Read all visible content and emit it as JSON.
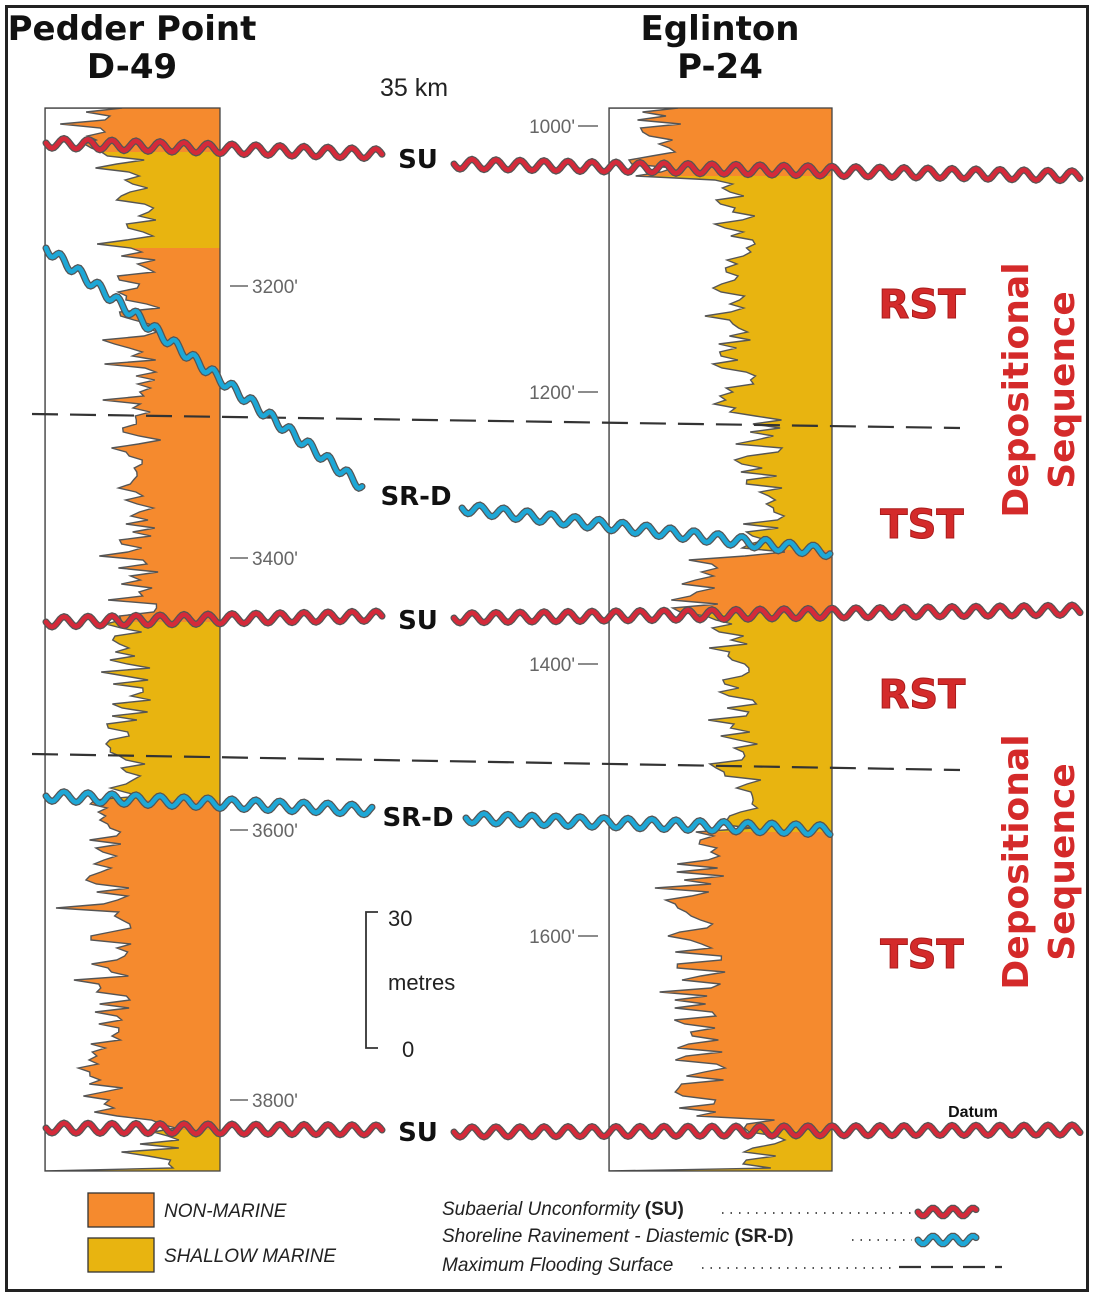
{
  "colors": {
    "non_marine": "#f58a2e",
    "shallow_marine": "#e8b410",
    "subaerial_unconformity": "#d42a3a",
    "shoreline_ravinement": "#1ea7d6",
    "tract_label": "#d42a2a",
    "log_line": "#555555"
  },
  "wells": [
    {
      "name_line1": "Pedder Point",
      "name_line2": "D-49",
      "depths": [
        "3200'",
        "3400'",
        "3600'",
        "3800'"
      ]
    },
    {
      "name_line1": "Eglinton",
      "name_line2": "P-24",
      "depths": [
        "1000'",
        "1200'",
        "1400'",
        "1600'"
      ]
    }
  ],
  "distance": "35 km",
  "surfaces": {
    "su": "SU",
    "srd": "SR-D",
    "datum": "Datum"
  },
  "tracts": {
    "rst": "RST",
    "tst": "TST"
  },
  "sequence_label_line1": "Depositional",
  "sequence_label_line2": "Sequence",
  "scale": {
    "top": "30",
    "unit": "metres",
    "bottom": "0"
  },
  "legend": {
    "non_marine": "NON-MARINE",
    "shallow_marine": "SHALLOW MARINE",
    "su_text": "Subaerial Unconformity ",
    "su_abbr": "(SU)",
    "srd_text": "Shoreline Ravinement - Diastemic ",
    "srd_abbr": "(SR-D)",
    "mfs_text": "Maximum Flooding Surface"
  }
}
